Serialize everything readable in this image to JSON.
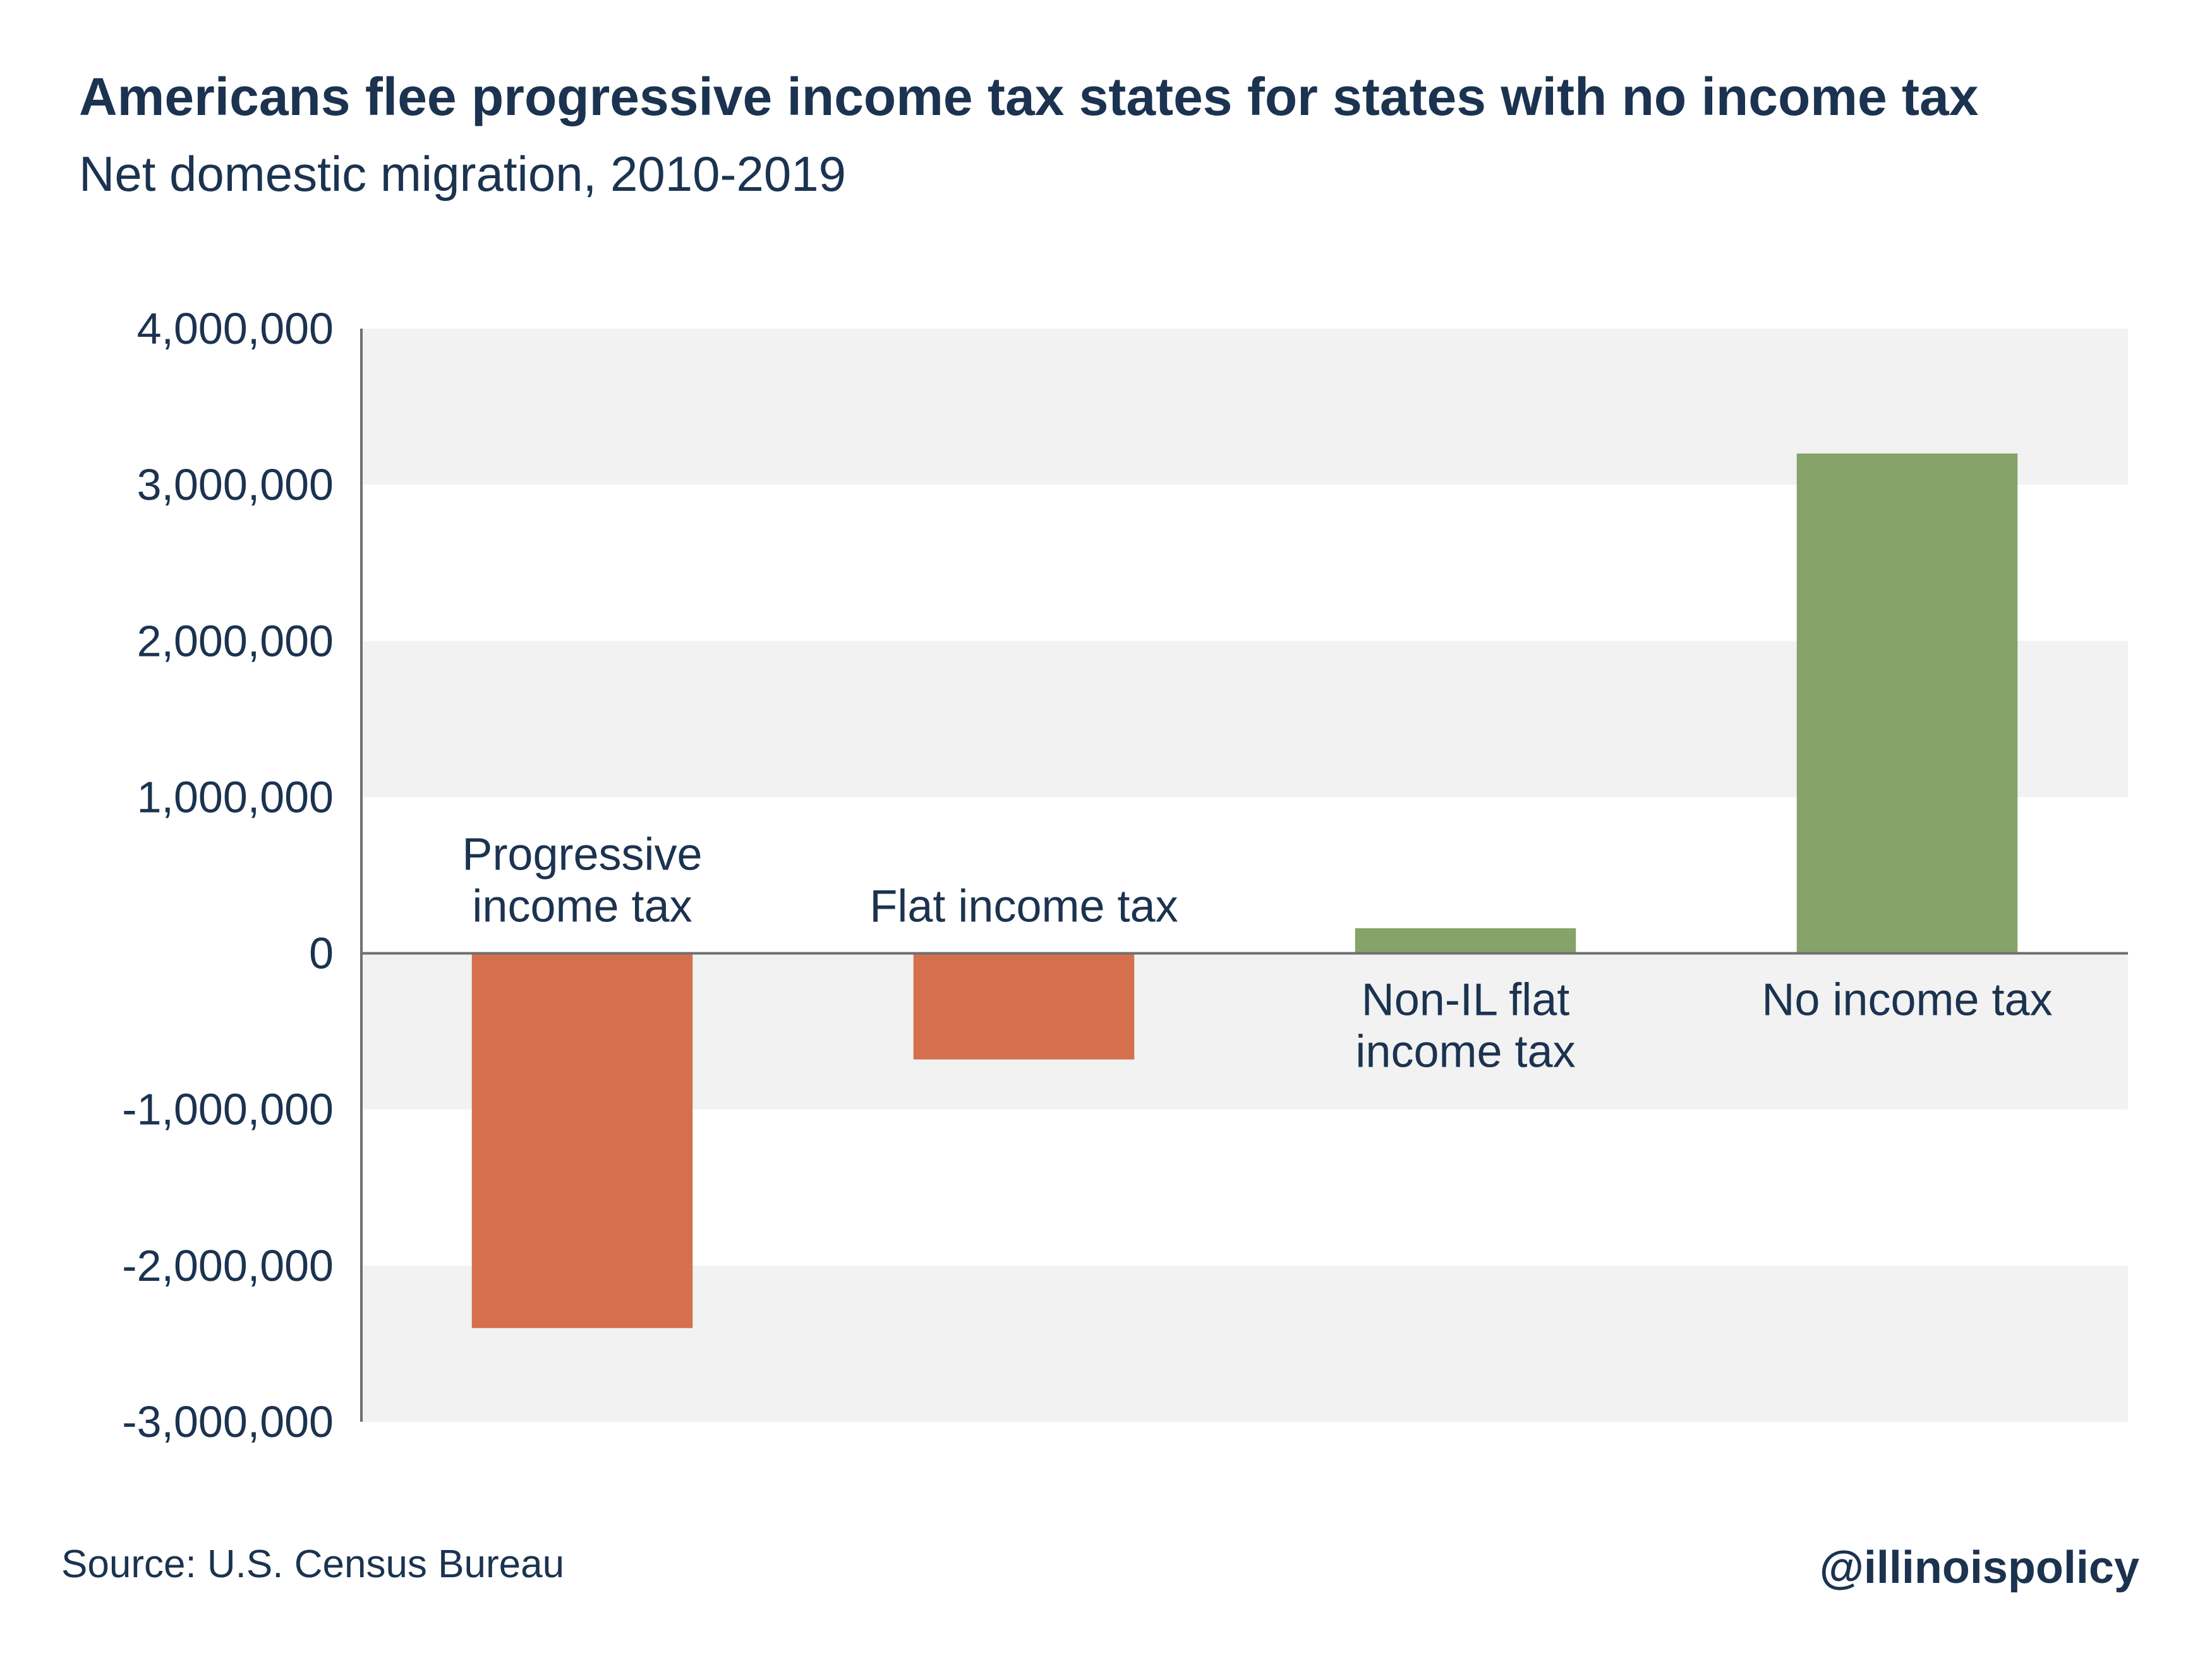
{
  "chart_data": {
    "type": "bar",
    "title": "Americans flee progressive income tax states for states with no income tax",
    "subtitle": "Net domestic migration, 2010-2019",
    "categories": [
      "Progressive income tax",
      "Flat income tax",
      "Non-IL flat income tax",
      "No income tax"
    ],
    "category_label_lines": [
      [
        "Progressive",
        "income tax"
      ],
      [
        "Flat income tax"
      ],
      [
        "Non-IL flat",
        "income tax"
      ],
      [
        "No income tax"
      ]
    ],
    "values": [
      -2400000,
      -680000,
      160000,
      3200000
    ],
    "bar_colors": [
      "#d4704d",
      "#d4704d",
      "#86a369",
      "#86a369"
    ],
    "ylim": [
      -3000000,
      4000000
    ],
    "yticks": [
      4000000,
      3000000,
      2000000,
      1000000,
      0,
      -1000000,
      -2000000,
      -3000000
    ],
    "ytick_labels": [
      "4,000,000",
      "3,000,000",
      "2,000,000",
      "1,000,000",
      "0",
      "-1,000,000",
      "-2,000,000",
      "-3,000,000"
    ],
    "xlabel": "",
    "ylabel": "",
    "grid": "alternating horizontal bands",
    "band_color": "#f2f2f2",
    "legend": "none"
  },
  "footer": {
    "source": "Source: U.S. Census Bureau",
    "handle": "@illinoispolicy"
  }
}
